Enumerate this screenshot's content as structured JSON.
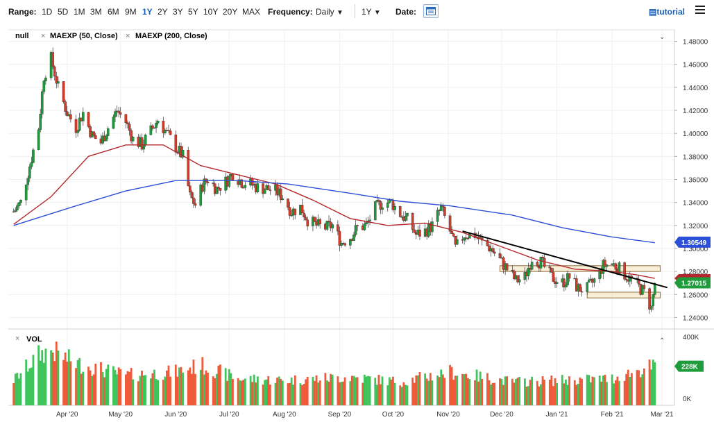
{
  "toolbar": {
    "range_label": "Range:",
    "ranges": [
      "1D",
      "5D",
      "1M",
      "3M",
      "6M",
      "9M",
      "1Y",
      "2Y",
      "3Y",
      "5Y",
      "10Y",
      "20Y",
      "MAX"
    ],
    "active_range": "1Y",
    "frequency_label": "Frequency:",
    "frequency_value": "Daily",
    "period_value": "1Y",
    "date_label": "Date:",
    "tutorial_label": "tutorial"
  },
  "legend": {
    "main_series": "null",
    "ma50": "MAEXP (50, Close)",
    "ma200": "MAEXP (200, Close)",
    "volume": "VOL"
  },
  "colors": {
    "up": "#1e9b3a",
    "down": "#d63b28",
    "ma50": "#b3282d",
    "ma200": "#2b4fd6",
    "trend": "#000000",
    "zone_fill": "#f7e7c6",
    "zone_stroke": "#8a6d3b",
    "vol_up": "#3ec45a",
    "vol_down": "#ee5a3a"
  },
  "chart_data": {
    "type": "candlestick",
    "ylim": [
      1.23,
      1.49
    ],
    "yticks": [
      "1.48000",
      "1.46000",
      "1.44000",
      "1.42000",
      "1.40000",
      "1.38000",
      "1.36000",
      "1.34000",
      "1.32000",
      "1.30000",
      "1.28000",
      "1.26000",
      "1.24000"
    ],
    "xticks": [
      "Apr '20",
      "May '20",
      "Jun '20",
      "Jul '20",
      "Aug '20",
      "Sep '20",
      "Oct '20",
      "Nov '20",
      "Dec '20",
      "Jan '21",
      "Feb '21",
      "Mar '21"
    ],
    "price_labels": {
      "ma200": "1.30549",
      "last": "1.27015"
    },
    "ma50_label_visible": true,
    "price_path": [
      [
        "2020-03-02",
        1.332
      ],
      [
        "2020-03-06",
        1.34
      ],
      [
        "2020-03-11",
        1.372
      ],
      [
        "2020-03-16",
        1.405
      ],
      [
        "2020-03-19",
        1.45
      ],
      [
        "2020-03-23",
        1.465
      ],
      [
        "2020-03-27",
        1.44
      ],
      [
        "2020-04-01",
        1.418
      ],
      [
        "2020-04-06",
        1.405
      ],
      [
        "2020-04-10",
        1.418
      ],
      [
        "2020-04-15",
        1.398
      ],
      [
        "2020-04-20",
        1.392
      ],
      [
        "2020-04-24",
        1.405
      ],
      [
        "2020-04-29",
        1.42
      ],
      [
        "2020-05-04",
        1.41
      ],
      [
        "2020-05-08",
        1.395
      ],
      [
        "2020-05-13",
        1.39
      ],
      [
        "2020-05-18",
        1.402
      ],
      [
        "2020-05-22",
        1.412
      ],
      [
        "2020-05-27",
        1.4
      ],
      [
        "2020-06-01",
        1.388
      ],
      [
        "2020-06-05",
        1.38
      ],
      [
        "2020-06-09",
        1.345
      ],
      [
        "2020-06-12",
        1.338
      ],
      [
        "2020-06-16",
        1.355
      ],
      [
        "2020-06-19",
        1.36
      ],
      [
        "2020-06-24",
        1.352
      ],
      [
        "2020-06-29",
        1.358
      ],
      [
        "2020-07-03",
        1.365
      ],
      [
        "2020-07-08",
        1.358
      ],
      [
        "2020-07-13",
        1.356
      ],
      [
        "2020-07-17",
        1.353
      ],
      [
        "2020-07-22",
        1.352
      ],
      [
        "2020-07-27",
        1.35
      ],
      [
        "2020-07-31",
        1.345
      ],
      [
        "2020-08-05",
        1.332
      ],
      [
        "2020-08-10",
        1.336
      ],
      [
        "2020-08-14",
        1.325
      ],
      [
        "2020-08-19",
        1.32
      ],
      [
        "2020-08-24",
        1.318
      ],
      [
        "2020-08-28",
        1.32
      ],
      [
        "2020-09-02",
        1.305
      ],
      [
        "2020-09-07",
        1.31
      ],
      [
        "2020-09-11",
        1.318
      ],
      [
        "2020-09-16",
        1.32
      ],
      [
        "2020-09-21",
        1.335
      ],
      [
        "2020-09-25",
        1.34
      ],
      [
        "2020-09-30",
        1.34
      ],
      [
        "2020-10-05",
        1.33
      ],
      [
        "2020-10-09",
        1.325
      ],
      [
        "2020-10-14",
        1.312
      ],
      [
        "2020-10-19",
        1.315
      ],
      [
        "2020-10-23",
        1.32
      ],
      [
        "2020-10-28",
        1.335
      ],
      [
        "2020-11-02",
        1.315
      ],
      [
        "2020-11-05",
        1.3
      ],
      [
        "2020-11-10",
        1.312
      ],
      [
        "2020-11-16",
        1.312
      ],
      [
        "2020-11-20",
        1.305
      ],
      [
        "2020-11-25",
        1.3
      ],
      [
        "2020-11-30",
        1.29
      ],
      [
        "2020-12-04",
        1.282
      ],
      [
        "2020-12-09",
        1.272
      ],
      [
        "2020-12-14",
        1.275
      ],
      [
        "2020-12-18",
        1.292
      ],
      [
        "2020-12-23",
        1.288
      ],
      [
        "2020-12-29",
        1.275
      ],
      [
        "2021-01-04",
        1.27
      ],
      [
        "2021-01-08",
        1.275
      ],
      [
        "2021-01-13",
        1.265
      ],
      [
        "2021-01-18",
        1.265
      ],
      [
        "2021-01-22",
        1.272
      ],
      [
        "2021-01-27",
        1.285
      ],
      [
        "2021-02-01",
        1.287
      ],
      [
        "2021-02-05",
        1.282
      ],
      [
        "2021-02-10",
        1.275
      ],
      [
        "2021-02-15",
        1.268
      ],
      [
        "2021-02-19",
        1.262
      ],
      [
        "2021-02-23",
        1.248
      ],
      [
        "2021-02-25",
        1.27
      ]
    ],
    "ma50": [
      [
        "2020-03-02",
        1.321
      ],
      [
        "2020-03-23",
        1.345
      ],
      [
        "2020-04-13",
        1.38
      ],
      [
        "2020-05-04",
        1.39
      ],
      [
        "2020-05-25",
        1.39
      ],
      [
        "2020-06-15",
        1.372
      ],
      [
        "2020-07-06",
        1.364
      ],
      [
        "2020-07-27",
        1.356
      ],
      [
        "2020-08-17",
        1.342
      ],
      [
        "2020-09-07",
        1.326
      ],
      [
        "2020-09-28",
        1.32
      ],
      [
        "2020-10-19",
        1.322
      ],
      [
        "2020-11-09",
        1.314
      ],
      [
        "2020-11-30",
        1.302
      ],
      [
        "2020-12-21",
        1.29
      ],
      [
        "2021-01-11",
        1.282
      ],
      [
        "2021-02-01",
        1.28
      ],
      [
        "2021-02-15",
        1.277
      ],
      [
        "2021-02-25",
        1.274
      ]
    ],
    "ma200": [
      [
        "2020-03-02",
        1.32
      ],
      [
        "2020-04-06",
        1.337
      ],
      [
        "2020-05-04",
        1.35
      ],
      [
        "2020-06-01",
        1.359
      ],
      [
        "2020-07-06",
        1.359
      ],
      [
        "2020-08-03",
        1.356
      ],
      [
        "2020-09-07",
        1.348
      ],
      [
        "2020-10-05",
        1.341
      ],
      [
        "2020-11-02",
        1.337
      ],
      [
        "2020-12-07",
        1.329
      ],
      [
        "2021-01-04",
        1.318
      ],
      [
        "2021-02-01",
        1.31
      ],
      [
        "2021-02-25",
        1.305
      ]
    ],
    "trendline": [
      [
        "2020-11-09",
        1.315
      ],
      [
        "2021-03-04",
        1.266
      ]
    ],
    "zones": [
      {
        "from": "2020-11-30",
        "to": "2021-02-28",
        "low": 1.28,
        "high": 1.285
      },
      {
        "from": "2021-01-18",
        "to": "2021-02-28",
        "low": 1.257,
        "high": 1.262
      }
    ],
    "volume": {
      "ylim": [
        0,
        400000
      ],
      "yticks": [
        "400K",
        "0K"
      ],
      "last_label": "228K",
      "profile": [
        [
          "2020-03-02",
          150000
        ],
        [
          "2020-03-16",
          300000
        ],
        [
          "2020-03-23",
          330000
        ],
        [
          "2020-04-06",
          250000
        ],
        [
          "2020-05-04",
          180000
        ],
        [
          "2020-06-01",
          200000
        ],
        [
          "2020-06-15",
          240000
        ],
        [
          "2020-07-06",
          160000
        ],
        [
          "2020-08-03",
          150000
        ],
        [
          "2020-09-07",
          170000
        ],
        [
          "2020-10-05",
          140000
        ],
        [
          "2020-11-02",
          200000
        ],
        [
          "2020-12-07",
          140000
        ],
        [
          "2021-01-04",
          150000
        ],
        [
          "2021-02-01",
          160000
        ],
        [
          "2021-02-22",
          228000
        ]
      ]
    }
  }
}
